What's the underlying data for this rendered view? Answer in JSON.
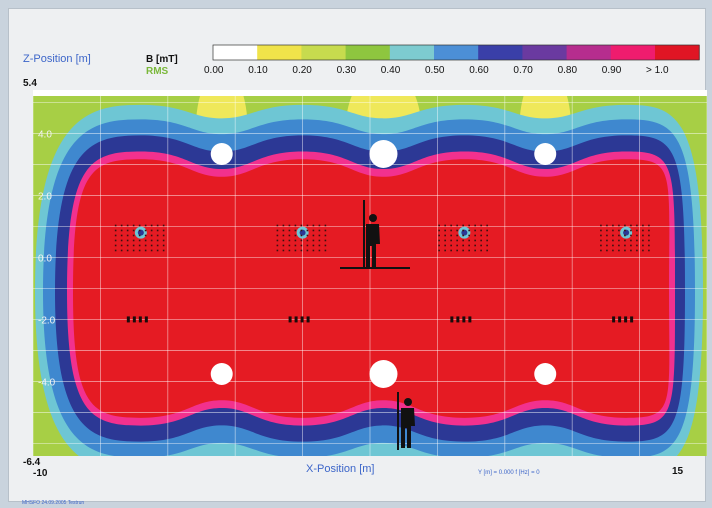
{
  "chart_data": {
    "type": "heatmap",
    "z_axis_label": "Z-Position [m]",
    "x_axis_label": "X-Position [m]",
    "quantity_label": "B [mT]",
    "quantity_sublabel": "RMS",
    "xlim": [
      -10,
      15
    ],
    "zlim": [
      -6.4,
      5.4
    ],
    "x_min_label": "-10",
    "x_max_label": "15",
    "z_max_label": "5.4",
    "z_min_label": "-6.4",
    "z_ticks": [
      "4.0",
      "2.0",
      "0.0",
      "-2.0",
      "-4.0"
    ],
    "z_tick_values": [
      4.0,
      2.0,
      0.0,
      -2.0,
      -4.0
    ],
    "info_text": "Y [m] = 0.000     f [Hz] = 0",
    "footer_text": "MHSFO 24.09.2005 Testrun",
    "legend": {
      "labels": [
        "0.00",
        "0.10",
        "0.20",
        "0.30",
        "0.40",
        "0.50",
        "0.60",
        "0.70",
        "0.80",
        "0.90",
        "> 1.0"
      ],
      "colors": [
        "#ffffff",
        "#f0e34a",
        "#c7db4e",
        "#8ec63f",
        "#7dcbd0",
        "#4c8fd6",
        "#3a3fa8",
        "#6a3aa0",
        "#b62d8e",
        "#ef1c6e",
        "#e01524"
      ]
    },
    "level_colors": {
      "bg": "#a7cf45",
      "yellow": "#efe85a",
      "white": "#ffffff",
      "cyan": "#6ec6d4",
      "blue_light": "#3f88cf",
      "blue_dark": "#2c3895",
      "pink": "#f2318e",
      "red": "#e51b23"
    },
    "coils_x": [
      -6,
      0,
      6,
      12
    ]
  }
}
